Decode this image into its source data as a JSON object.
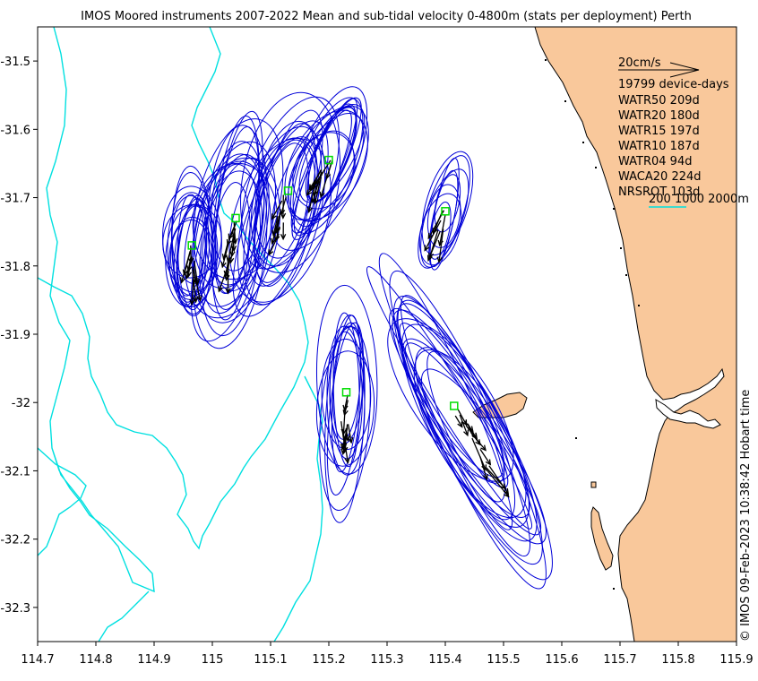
{
  "title": "IMOS Moored instruments 2007-2022 Mean and sub-tidal velocity 0-4800m (stats per deployment) Perth",
  "credit": "© IMOS 09-Feb-2023 10:38:42 Hobart time",
  "colors": {
    "land": "#f9c89b",
    "coast": "#000000",
    "isobath": "#00e0e0",
    "ellipse": "#0000d8",
    "arrow": "#000000",
    "site_marker": "#00dd00",
    "background": "#ffffff"
  },
  "axes": {
    "x_ticks": [
      "114.7",
      "114.8",
      "114.9",
      "115",
      "115.1",
      "115.2",
      "115.3",
      "115.4",
      "115.5",
      "115.6",
      "115.7",
      "115.8",
      "115.9"
    ],
    "y_ticks": [
      "-31.5",
      "-31.6",
      "-31.7",
      "-31.8",
      "-31.9",
      "-32",
      "-32.1",
      "-32.2",
      "-32.3"
    ],
    "xlim": [
      114.7,
      115.9
    ],
    "ylim": [
      -32.35,
      -31.45
    ]
  },
  "legend": {
    "scale_label": "20cm/s",
    "device_days": "19799 device-days",
    "entries": [
      "WATR50 209d",
      "WATR20 180d",
      "WATR15 197d",
      "WATR10 187d",
      "WATR04 94d",
      "WACA20 224d",
      "NRSROT 103d"
    ],
    "isobath_label": "200 1000 2000m"
  },
  "chart_data": {
    "type": "map",
    "sites": [
      {
        "lon": 114.965,
        "lat": -31.77,
        "ellipses": 14,
        "major": 0.085,
        "minor": 0.04,
        "tilt": 92
      },
      {
        "lon": 115.04,
        "lat": -31.73,
        "ellipses": 16,
        "major": 0.13,
        "minor": 0.06,
        "tilt": 100
      },
      {
        "lon": 115.13,
        "lat": -31.69,
        "ellipses": 12,
        "major": 0.12,
        "minor": 0.07,
        "tilt": 105
      },
      {
        "lon": 115.2,
        "lat": -31.645,
        "ellipses": 14,
        "major": 0.09,
        "minor": 0.05,
        "tilt": 115
      },
      {
        "lon": 115.4,
        "lat": -31.72,
        "ellipses": 9,
        "major": 0.07,
        "minor": 0.03,
        "tilt": 105
      },
      {
        "lon": 115.23,
        "lat": -31.985,
        "ellipses": 12,
        "major": 0.12,
        "minor": 0.04,
        "tilt": 93
      },
      {
        "lon": 115.415,
        "lat": -32.005,
        "ellipses": 18,
        "major": 0.2,
        "minor": 0.05,
        "tilt": 60
      }
    ]
  }
}
